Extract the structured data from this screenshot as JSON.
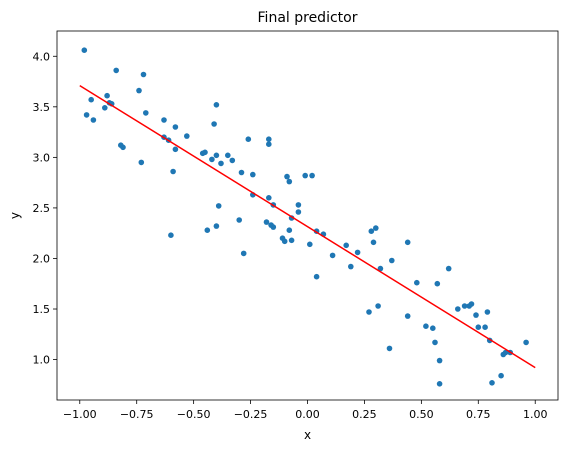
{
  "chart_data": {
    "type": "scatter",
    "title": "Final predictor",
    "xlabel": "x",
    "ylabel": "y",
    "xlim": [
      -1.1,
      1.1
    ],
    "ylim": [
      0.6,
      4.25
    ],
    "xticks": [
      -1.0,
      -0.75,
      -0.5,
      -0.25,
      0.0,
      0.25,
      0.5,
      0.75,
      1.0
    ],
    "xtick_labels": [
      "−1.00",
      "−0.75",
      "−0.50",
      "−0.25",
      "0.00",
      "0.25",
      "0.50",
      "0.75",
      "1.00"
    ],
    "yticks": [
      1.0,
      1.5,
      2.0,
      2.5,
      3.0,
      3.5,
      4.0
    ],
    "ytick_labels": [
      "1.0",
      "1.5",
      "2.0",
      "2.5",
      "3.0",
      "3.5",
      "4.0"
    ],
    "grid": false,
    "legend": "none",
    "colors": {
      "points": "#1f77b4",
      "line": "#ff0000"
    },
    "scatter_points": [
      [
        -0.98,
        4.06
      ],
      [
        -0.97,
        3.42
      ],
      [
        -0.95,
        3.57
      ],
      [
        -0.94,
        3.37
      ],
      [
        -0.89,
        3.49
      ],
      [
        -0.88,
        3.61
      ],
      [
        -0.87,
        3.54
      ],
      [
        -0.86,
        3.53
      ],
      [
        -0.84,
        3.86
      ],
      [
        -0.82,
        3.12
      ],
      [
        -0.81,
        3.1
      ],
      [
        -0.74,
        3.66
      ],
      [
        -0.73,
        2.95
      ],
      [
        -0.72,
        3.82
      ],
      [
        -0.71,
        3.44
      ],
      [
        -0.63,
        3.37
      ],
      [
        -0.63,
        3.2
      ],
      [
        -0.61,
        3.17
      ],
      [
        -0.6,
        2.23
      ],
      [
        -0.59,
        2.86
      ],
      [
        -0.58,
        3.08
      ],
      [
        -0.58,
        3.3
      ],
      [
        -0.53,
        3.21
      ],
      [
        -0.46,
        3.04
      ],
      [
        -0.45,
        3.05
      ],
      [
        -0.44,
        2.28
      ],
      [
        -0.42,
        2.98
      ],
      [
        -0.41,
        3.33
      ],
      [
        -0.4,
        3.02
      ],
      [
        -0.4,
        3.52
      ],
      [
        -0.4,
        2.32
      ],
      [
        -0.39,
        2.52
      ],
      [
        -0.38,
        2.94
      ],
      [
        -0.35,
        3.02
      ],
      [
        -0.33,
        2.97
      ],
      [
        -0.3,
        2.38
      ],
      [
        -0.29,
        2.85
      ],
      [
        -0.28,
        2.05
      ],
      [
        -0.26,
        3.18
      ],
      [
        -0.24,
        2.83
      ],
      [
        -0.24,
        2.63
      ],
      [
        -0.17,
        3.18
      ],
      [
        -0.17,
        3.13
      ],
      [
        -0.17,
        2.6
      ],
      [
        -0.18,
        2.36
      ],
      [
        -0.16,
        2.33
      ],
      [
        -0.15,
        2.31
      ],
      [
        -0.15,
        2.53
      ],
      [
        -0.11,
        2.2
      ],
      [
        -0.1,
        2.17
      ],
      [
        -0.09,
        2.81
      ],
      [
        -0.08,
        2.76
      ],
      [
        -0.08,
        2.28
      ],
      [
        -0.07,
        2.4
      ],
      [
        -0.07,
        2.18
      ],
      [
        -0.04,
        2.53
      ],
      [
        -0.04,
        2.46
      ],
      [
        -0.01,
        2.82
      ],
      [
        0.01,
        2.14
      ],
      [
        0.02,
        2.82
      ],
      [
        0.04,
        2.27
      ],
      [
        0.04,
        1.82
      ],
      [
        0.07,
        2.24
      ],
      [
        0.11,
        2.03
      ],
      [
        0.17,
        2.13
      ],
      [
        0.19,
        1.92
      ],
      [
        0.22,
        2.06
      ],
      [
        0.27,
        1.47
      ],
      [
        0.28,
        2.27
      ],
      [
        0.29,
        2.16
      ],
      [
        0.3,
        2.3
      ],
      [
        0.31,
        1.53
      ],
      [
        0.32,
        1.9
      ],
      [
        0.36,
        1.11
      ],
      [
        0.37,
        1.98
      ],
      [
        0.44,
        2.16
      ],
      [
        0.44,
        1.43
      ],
      [
        0.48,
        1.76
      ],
      [
        0.52,
        1.33
      ],
      [
        0.55,
        1.31
      ],
      [
        0.56,
        1.17
      ],
      [
        0.57,
        1.75
      ],
      [
        0.58,
        0.99
      ],
      [
        0.58,
        0.76
      ],
      [
        0.62,
        1.9
      ],
      [
        0.66,
        1.5
      ],
      [
        0.69,
        1.53
      ],
      [
        0.71,
        1.53
      ],
      [
        0.72,
        1.55
      ],
      [
        0.74,
        1.44
      ],
      [
        0.75,
        1.32
      ],
      [
        0.78,
        1.32
      ],
      [
        0.79,
        1.47
      ],
      [
        0.8,
        1.19
      ],
      [
        0.81,
        0.77
      ],
      [
        0.85,
        0.84
      ],
      [
        0.86,
        1.05
      ],
      [
        0.87,
        1.07
      ],
      [
        0.89,
        1.07
      ],
      [
        0.96,
        1.17
      ]
    ],
    "fit_line": {
      "x": [
        -1.0,
        1.0
      ],
      "y": [
        3.71,
        0.92
      ]
    }
  }
}
